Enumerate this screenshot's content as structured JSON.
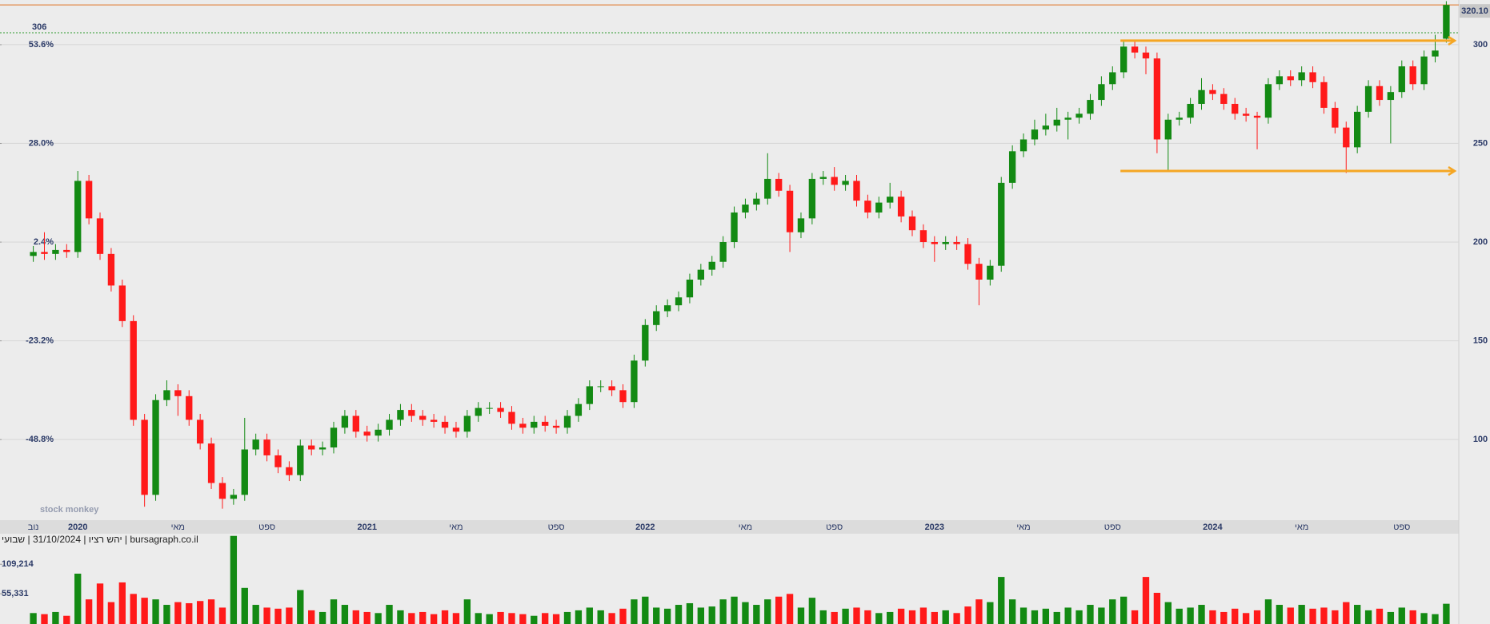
{
  "chart_data": {
    "type": "candlestick",
    "note": "bursagraph.co.il | יהש רציו | 31/10/2024 | שבועי",
    "watermark": "stock monkey",
    "up_color": "#138a13",
    "down_color": "#ff1a1a",
    "categories": [
      "נוב",
      null,
      null,
      null,
      "2020",
      null,
      null,
      null,
      null,
      null,
      null,
      null,
      null,
      "מאי",
      null,
      null,
      null,
      null,
      null,
      null,
      null,
      "ספט",
      null,
      null,
      null,
      null,
      null,
      null,
      null,
      null,
      "2021",
      null,
      null,
      null,
      null,
      null,
      null,
      null,
      "מאי",
      null,
      null,
      null,
      null,
      null,
      null,
      null,
      null,
      "ספט",
      null,
      null,
      null,
      null,
      null,
      null,
      null,
      "2022",
      null,
      null,
      null,
      null,
      null,
      null,
      null,
      null,
      "מאי",
      null,
      null,
      null,
      null,
      null,
      null,
      null,
      "ספט",
      null,
      null,
      null,
      null,
      null,
      null,
      null,
      null,
      "2023",
      null,
      null,
      null,
      null,
      null,
      null,
      null,
      "מאי",
      null,
      null,
      null,
      null,
      null,
      null,
      null,
      "ספט",
      null,
      null,
      null,
      null,
      null,
      null,
      null,
      null,
      "2024",
      null,
      null,
      null,
      null,
      null,
      null,
      null,
      "מאי",
      null,
      null,
      null,
      null,
      null,
      null,
      null,
      null,
      "ספט",
      null,
      null,
      null,
      null
    ],
    "open": [
      193,
      195,
      194,
      196,
      195,
      231,
      212,
      194,
      178,
      160,
      110,
      72,
      120,
      125,
      122,
      110,
      98,
      78,
      70,
      72,
      95,
      100,
      92,
      86,
      82,
      97,
      95,
      96,
      106,
      112,
      104,
      102,
      105,
      110,
      115,
      112,
      110,
      109,
      106,
      104,
      112,
      116,
      116,
      114,
      108,
      106,
      109,
      107,
      106,
      112,
      118,
      127,
      127,
      125,
      119,
      140,
      158,
      165,
      168,
      172,
      181,
      186,
      190,
      200,
      215,
      219,
      222,
      232,
      226,
      205,
      212,
      232,
      233,
      229,
      231,
      221,
      215,
      220,
      223,
      213,
      206,
      200,
      199,
      200,
      199,
      189,
      181,
      188,
      230,
      246,
      252,
      257,
      259,
      262,
      263,
      265,
      272,
      280,
      286,
      299,
      296,
      293,
      252,
      262,
      263,
      270,
      277,
      275,
      270,
      265,
      264,
      263,
      280,
      284,
      282,
      286,
      281,
      268,
      258,
      248,
      266,
      279,
      272,
      276,
      289,
      280,
      294,
      303
    ],
    "high": [
      198,
      205,
      199,
      199,
      236,
      234,
      215,
      197,
      181,
      163,
      113,
      123,
      130,
      128,
      125,
      113,
      101,
      81,
      75,
      111,
      103,
      103,
      95,
      89,
      100,
      100,
      99,
      109,
      115,
      115,
      107,
      108,
      113,
      118,
      118,
      115,
      113,
      112,
      109,
      115,
      119,
      119,
      119,
      117,
      111,
      112,
      112,
      110,
      115,
      121,
      130,
      130,
      130,
      128,
      143,
      161,
      168,
      171,
      175,
      184,
      189,
      193,
      203,
      218,
      222,
      225,
      245,
      235,
      229,
      215,
      235,
      236,
      238,
      234,
      234,
      224,
      223,
      230,
      226,
      216,
      209,
      203,
      203,
      203,
      202,
      192,
      191,
      233,
      249,
      255,
      262,
      265,
      268,
      266,
      268,
      275,
      284,
      289,
      302,
      302,
      299,
      296,
      265,
      266,
      273,
      283,
      280,
      278,
      273,
      268,
      266,
      283,
      287,
      287,
      289,
      289,
      284,
      271,
      261,
      269,
      282,
      282,
      279,
      292,
      292,
      297,
      305,
      322
    ],
    "low": [
      190,
      191,
      191,
      192,
      192,
      209,
      191,
      175,
      157,
      107,
      66,
      69,
      117,
      112,
      107,
      95,
      75,
      65,
      67,
      69,
      92,
      89,
      83,
      79,
      79,
      92,
      92,
      93,
      103,
      101,
      99,
      99,
      102,
      107,
      109,
      107,
      106,
      103,
      101,
      101,
      109,
      113,
      111,
      105,
      103,
      103,
      104,
      103,
      103,
      109,
      115,
      124,
      122,
      116,
      116,
      137,
      155,
      162,
      165,
      169,
      178,
      183,
      187,
      197,
      212,
      216,
      219,
      223,
      195,
      202,
      209,
      229,
      226,
      226,
      218,
      212,
      212,
      217,
      210,
      203,
      197,
      190,
      196,
      196,
      186,
      168,
      178,
      185,
      227,
      243,
      249,
      254,
      256,
      252,
      260,
      262,
      269,
      277,
      283,
      293,
      285,
      245,
      236,
      259,
      260,
      267,
      272,
      267,
      262,
      261,
      247,
      260,
      277,
      279,
      279,
      278,
      265,
      255,
      235,
      245,
      263,
      269,
      250,
      273,
      277,
      277,
      291,
      301
    ],
    "close": [
      195,
      194,
      196,
      195,
      231,
      212,
      194,
      178,
      160,
      110,
      72,
      120,
      125,
      122,
      110,
      98,
      78,
      70,
      72,
      95,
      100,
      92,
      86,
      82,
      97,
      95,
      96,
      106,
      112,
      104,
      102,
      105,
      110,
      115,
      112,
      110,
      109,
      106,
      104,
      112,
      116,
      116,
      114,
      108,
      106,
      109,
      107,
      106,
      112,
      118,
      127,
      127,
      125,
      119,
      140,
      158,
      165,
      168,
      172,
      181,
      186,
      190,
      200,
      215,
      219,
      222,
      232,
      226,
      205,
      212,
      232,
      233,
      229,
      231,
      221,
      215,
      220,
      223,
      213,
      206,
      200,
      199,
      200,
      199,
      189,
      181,
      188,
      230,
      246,
      252,
      257,
      259,
      262,
      263,
      265,
      272,
      280,
      286,
      299,
      296,
      293,
      252,
      262,
      263,
      270,
      277,
      275,
      270,
      265,
      264,
      263,
      280,
      284,
      282,
      286,
      281,
      268,
      258,
      248,
      266,
      279,
      272,
      276,
      289,
      280,
      294,
      297,
      320.1
    ],
    "volume": [
      20000,
      18000,
      22000,
      15000,
      92000,
      45000,
      74000,
      40000,
      76000,
      55000,
      48000,
      45000,
      35000,
      40000,
      38000,
      42000,
      45000,
      30000,
      161000,
      66000,
      35000,
      30000,
      28000,
      30000,
      62000,
      25000,
      22000,
      45000,
      35000,
      25000,
      22000,
      20000,
      35000,
      25000,
      20000,
      22000,
      18000,
      25000,
      20000,
      45000,
      20000,
      18000,
      22000,
      20000,
      18000,
      15000,
      20000,
      18000,
      22000,
      25000,
      30000,
      25000,
      20000,
      28000,
      45000,
      50000,
      30000,
      28000,
      35000,
      38000,
      30000,
      32000,
      45000,
      50000,
      40000,
      35000,
      45000,
      50000,
      55000,
      30000,
      48000,
      25000,
      22000,
      28000,
      30000,
      25000,
      20000,
      22000,
      28000,
      25000,
      30000,
      22000,
      25000,
      20000,
      32000,
      45000,
      40000,
      86000,
      45000,
      30000,
      25000,
      28000,
      22000,
      30000,
      25000,
      35000,
      30000,
      45000,
      50000,
      25000,
      86000,
      57000,
      40000,
      28000,
      30000,
      35000,
      25000,
      22000,
      28000,
      20000,
      25000,
      45000,
      35000,
      30000,
      35000,
      28000,
      30000,
      25000,
      40000,
      35000,
      25000,
      28000,
      22000,
      30000,
      25000,
      20000,
      18000,
      37000
    ],
    "ylim": [
      59.2,
      322.6
    ],
    "yticks": [
      100,
      150,
      200,
      250,
      300
    ],
    "y2lim": [
      -69.7,
      65.2
    ],
    "y2ticks": [
      {
        "value": 53.6,
        "label": "53.6%"
      },
      {
        "value": 28.0,
        "label": "28.0%"
      },
      {
        "value": 2.4,
        "label": "2.4%"
      },
      {
        "value": -23.2,
        "label": "-23.2%"
      },
      {
        "value": -48.8,
        "label": "-48.8%"
      }
    ],
    "volume_lim": [
      0,
      165000
    ],
    "volume_ticks": [
      {
        "value": 109214,
        "label": "109,214"
      },
      {
        "value": 55331,
        "label": "55,331"
      }
    ],
    "last_price": {
      "value": 320.1,
      "label": "320.10"
    },
    "reference_line": 306,
    "levels": [
      302,
      236
    ],
    "grid": true
  }
}
